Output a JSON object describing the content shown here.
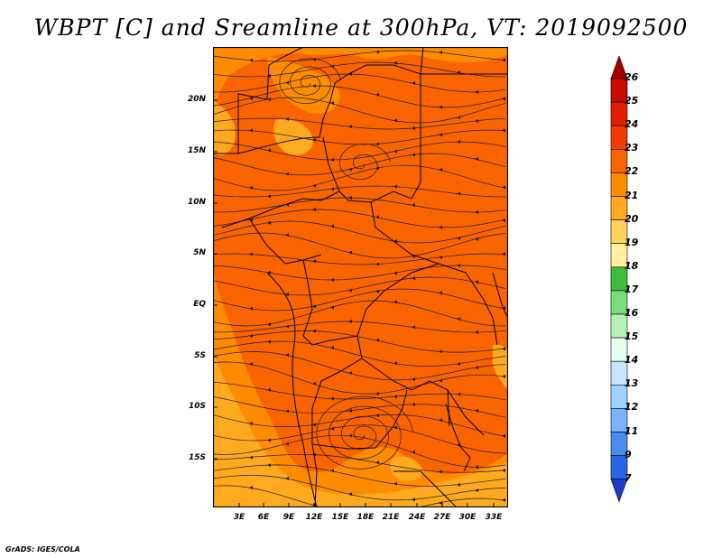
{
  "title": "WBPT [C] and Sreamline at 300hPa, VT: 2019092500",
  "credit": "GrADS: IGES/COLA",
  "lat_labels": [
    "20N",
    "15N",
    "10N",
    "5N",
    "EQ",
    "5S",
    "10S",
    "15S"
  ],
  "lon_labels": [
    "3E",
    "6E",
    "9E",
    "12E",
    "15E",
    "18E",
    "21E",
    "24E",
    "27E",
    "30E",
    "33E"
  ],
  "colorbar": {
    "levels": [
      "26",
      "25",
      "24",
      "23",
      "22",
      "21",
      "20",
      "19",
      "18",
      "17",
      "16",
      "15",
      "14",
      "13",
      "12",
      "11",
      "9",
      "7"
    ],
    "colors": [
      "#a50000",
      "#c80a00",
      "#e11e00",
      "#f03c00",
      "#fa6400",
      "#ff8c00",
      "#ffaa1e",
      "#ffd25a",
      "#fff0a0",
      "#3cbe3c",
      "#78dc78",
      "#b4f0b4",
      "#e6fff0",
      "#c8e6ff",
      "#a0d2ff",
      "#78b4fa",
      "#4b8cf0",
      "#2864e6",
      "#1e3cc8"
    ]
  },
  "colors": {
    "dominant_field": "#fa6400",
    "cooler_field": "#ffaa1e"
  }
}
